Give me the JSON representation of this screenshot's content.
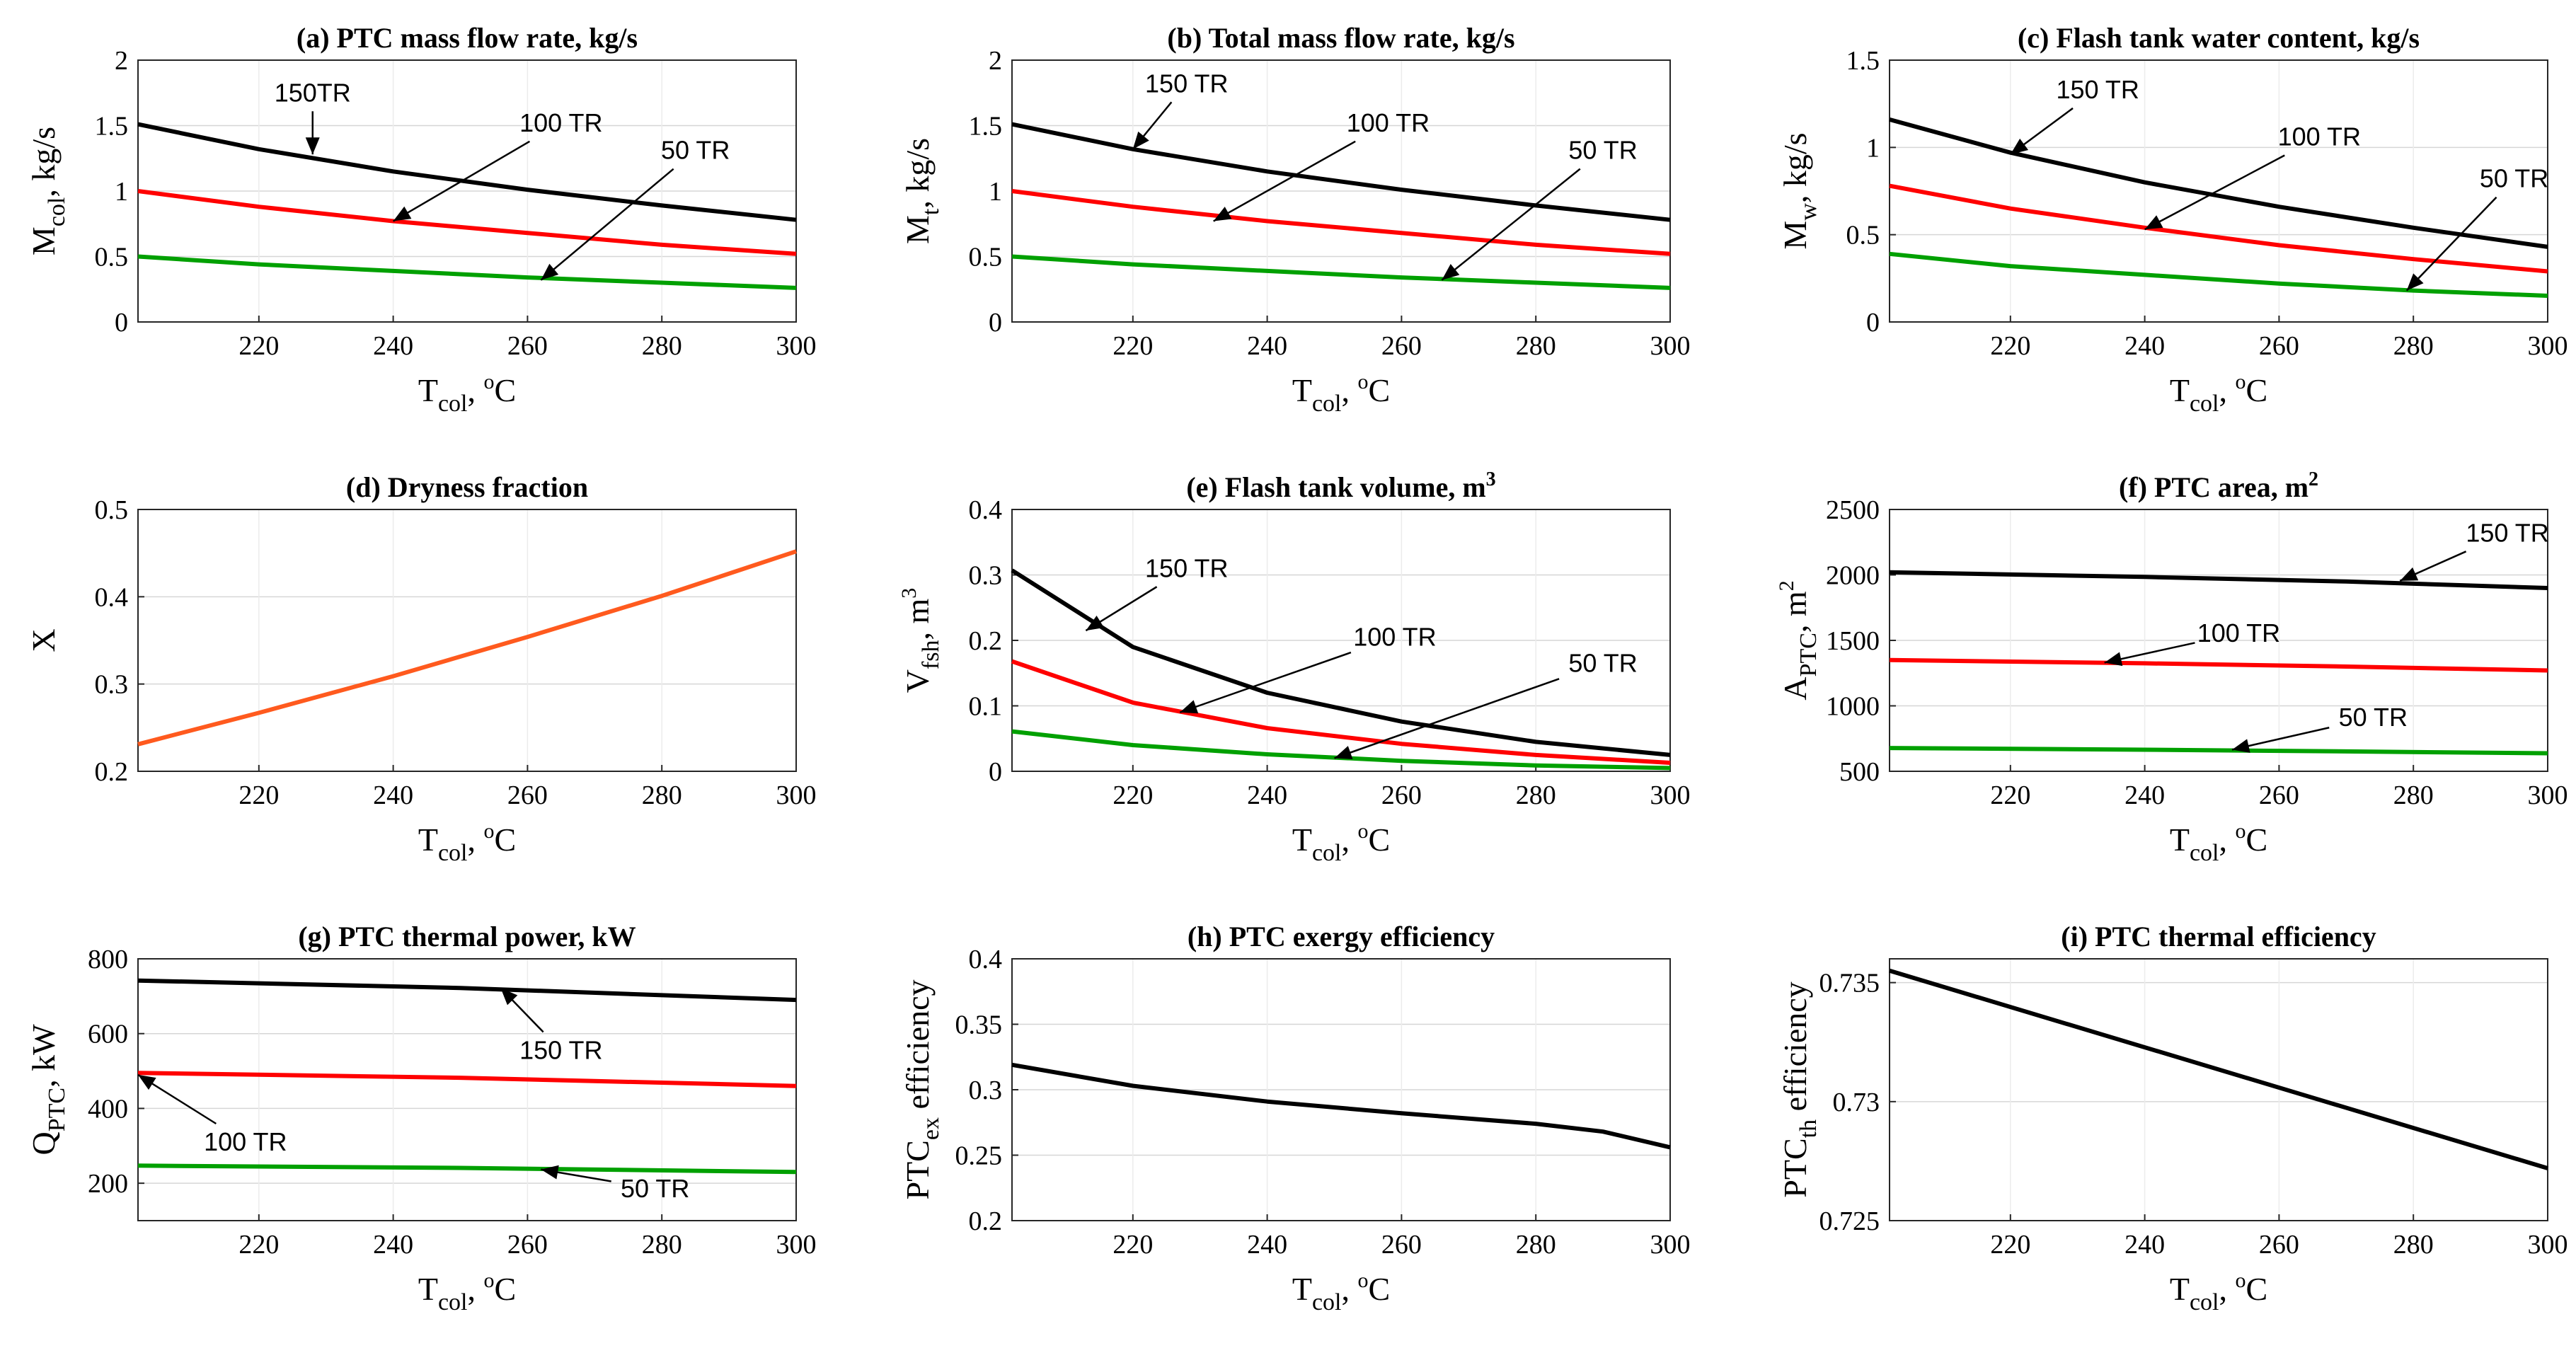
{
  "chart_data": [
    {
      "id": "a",
      "type": "line",
      "title": "(a) PTC mass flow rate, kg/s",
      "ylabel": "M_col, kg/s",
      "ylabel_parts": [
        "M",
        "col",
        ", kg/s"
      ],
      "xlabel_parts": [
        "T",
        "col",
        ", ",
        "o",
        "C"
      ],
      "xlim": [
        202,
        300
      ],
      "ylim": [
        0,
        2
      ],
      "xticks": [
        220,
        240,
        260,
        280,
        300
      ],
      "xtick_labels": [
        "220",
        "240",
        "260",
        "280",
        "300"
      ],
      "yticks": [
        0,
        0.5,
        1,
        1.5,
        2
      ],
      "ytick_labels": [
        "0",
        "0.5",
        "1",
        "1.5",
        "2"
      ],
      "series": [
        {
          "name": "150TR",
          "color": "#000000",
          "x": [
            202,
            220,
            240,
            260,
            280,
            300
          ],
          "y": [
            1.51,
            1.32,
            1.15,
            1.01,
            0.89,
            0.78
          ]
        },
        {
          "name": "100 TR",
          "color": "#ff0000",
          "x": [
            202,
            220,
            240,
            260,
            280,
            300
          ],
          "y": [
            1.0,
            0.88,
            0.77,
            0.68,
            0.59,
            0.52
          ]
        },
        {
          "name": "50 TR",
          "color": "#00a000",
          "x": [
            202,
            220,
            240,
            260,
            280,
            300
          ],
          "y": [
            0.5,
            0.44,
            0.39,
            0.34,
            0.3,
            0.26
          ]
        }
      ],
      "annotations": [
        {
          "text": "150TR",
          "tx": 228,
          "ty": 1.75,
          "ax": 228,
          "ay": 1.28
        },
        {
          "text": "100 TR",
          "tx": 265,
          "ty": 1.52,
          "ax": 240,
          "ay": 0.77
        },
        {
          "text": "50 TR",
          "tx": 285,
          "ty": 1.31,
          "ax": 262,
          "ay": 0.32
        }
      ]
    },
    {
      "id": "b",
      "type": "line",
      "title": "(b) Total mass flow rate, kg/s",
      "ylabel": "M_t, kg/s",
      "ylabel_parts": [
        "M",
        "t",
        ", kg/s"
      ],
      "xlabel_parts": [
        "T",
        "col",
        ", ",
        "o",
        "C"
      ],
      "xlim": [
        202,
        300
      ],
      "ylim": [
        0,
        2
      ],
      "xticks": [
        220,
        240,
        260,
        280,
        300
      ],
      "xtick_labels": [
        "220",
        "240",
        "260",
        "280",
        "300"
      ],
      "yticks": [
        0,
        0.5,
        1,
        1.5,
        2
      ],
      "ytick_labels": [
        "0",
        "0.5",
        "1",
        "1.5",
        "2"
      ],
      "series": [
        {
          "name": "150 TR",
          "color": "#000000",
          "x": [
            202,
            220,
            240,
            260,
            280,
            300
          ],
          "y": [
            1.51,
            1.32,
            1.15,
            1.01,
            0.89,
            0.78
          ]
        },
        {
          "name": "100 TR",
          "color": "#ff0000",
          "x": [
            202,
            220,
            240,
            260,
            280,
            300
          ],
          "y": [
            1.0,
            0.88,
            0.77,
            0.68,
            0.59,
            0.52
          ]
        },
        {
          "name": "50 TR",
          "color": "#00a000",
          "x": [
            202,
            220,
            240,
            260,
            280,
            300
          ],
          "y": [
            0.5,
            0.44,
            0.39,
            0.34,
            0.3,
            0.26
          ]
        }
      ],
      "annotations": [
        {
          "text": "150 TR",
          "tx": 228,
          "ty": 1.82,
          "ax": 220,
          "ay": 1.32
        },
        {
          "text": "100 TR",
          "tx": 258,
          "ty": 1.52,
          "ax": 232,
          "ay": 0.77
        },
        {
          "text": "50 TR",
          "tx": 290,
          "ty": 1.31,
          "ax": 266,
          "ay": 0.32
        }
      ]
    },
    {
      "id": "c",
      "type": "line",
      "title": "(c) Flash tank water content, kg/s",
      "ylabel": "M_w, kg/s",
      "ylabel_parts": [
        "M",
        "w",
        ", kg/s"
      ],
      "xlabel_parts": [
        "T",
        "col",
        ", ",
        "o",
        "C"
      ],
      "xlim": [
        202,
        300
      ],
      "ylim": [
        0,
        1.5
      ],
      "xticks": [
        220,
        240,
        260,
        280,
        300
      ],
      "xtick_labels": [
        "220",
        "240",
        "260",
        "280",
        "300"
      ],
      "yticks": [
        0,
        0.5,
        1,
        1.5
      ],
      "ytick_labels": [
        "0",
        "0.5",
        "1",
        "1.5"
      ],
      "series": [
        {
          "name": "150 TR",
          "color": "#000000",
          "x": [
            202,
            220,
            240,
            260,
            280,
            300
          ],
          "y": [
            1.16,
            0.97,
            0.8,
            0.66,
            0.54,
            0.43
          ]
        },
        {
          "name": "100 TR",
          "color": "#ff0000",
          "x": [
            202,
            220,
            240,
            260,
            280,
            300
          ],
          "y": [
            0.78,
            0.65,
            0.54,
            0.44,
            0.36,
            0.29
          ]
        },
        {
          "name": "50 TR",
          "color": "#00a000",
          "x": [
            202,
            220,
            240,
            260,
            280,
            300
          ],
          "y": [
            0.39,
            0.32,
            0.27,
            0.22,
            0.18,
            0.15
          ]
        }
      ],
      "annotations": [
        {
          "text": "150 TR",
          "tx": 233,
          "ty": 1.33,
          "ax": 220,
          "ay": 0.96
        },
        {
          "text": "100 TR",
          "tx": 266,
          "ty": 1.06,
          "ax": 240,
          "ay": 0.53
        },
        {
          "text": "50 TR",
          "tx": 295,
          "ty": 0.82,
          "ax": 279,
          "ay": 0.18
        }
      ]
    },
    {
      "id": "d",
      "type": "line",
      "title": "(d) Dryness fraction",
      "ylabel": "X",
      "ylabel_parts": [
        "X",
        "",
        ""
      ],
      "xlabel_parts": [
        "T",
        "col",
        ", ",
        "o",
        "C"
      ],
      "xlim": [
        202,
        300
      ],
      "ylim": [
        0.2,
        0.5
      ],
      "xticks": [
        220,
        240,
        260,
        280,
        300
      ],
      "xtick_labels": [
        "220",
        "240",
        "260",
        "280",
        "300"
      ],
      "yticks": [
        0.2,
        0.3,
        0.4,
        0.5
      ],
      "ytick_labels": [
        "0.2",
        "0.3",
        "0.4",
        "0.5"
      ],
      "series": [
        {
          "name": "X",
          "color": "#ff5a1e",
          "x": [
            202,
            220,
            240,
            260,
            280,
            300
          ],
          "y": [
            0.231,
            0.267,
            0.309,
            0.354,
            0.401,
            0.452
          ]
        }
      ],
      "annotations": []
    },
    {
      "id": "e",
      "type": "line",
      "title": "(e) Flash tank volume, m",
      "title_sup": "3",
      "ylabel": "V_fsh, m^3",
      "ylabel_parts": [
        "V",
        "fsh",
        ", m",
        "3"
      ],
      "xlabel_parts": [
        "T",
        "col",
        ", ",
        "o",
        "C"
      ],
      "xlim": [
        202,
        300
      ],
      "ylim": [
        0,
        0.4
      ],
      "xticks": [
        220,
        240,
        260,
        280,
        300
      ],
      "xtick_labels": [
        "220",
        "240",
        "260",
        "280",
        "300"
      ],
      "yticks": [
        0,
        0.1,
        0.2,
        0.3,
        0.4
      ],
      "ytick_labels": [
        "0",
        "0.1",
        "0.2",
        "0.3",
        "0.4"
      ],
      "series": [
        {
          "name": "150 TR",
          "color": "#000000",
          "x": [
            202,
            220,
            240,
            260,
            280,
            300
          ],
          "y": [
            0.307,
            0.19,
            0.12,
            0.076,
            0.045,
            0.025
          ]
        },
        {
          "name": "100 TR",
          "color": "#ff0000",
          "x": [
            202,
            220,
            240,
            260,
            280,
            300
          ],
          "y": [
            0.168,
            0.105,
            0.066,
            0.042,
            0.025,
            0.013
          ]
        },
        {
          "name": "50 TR",
          "color": "#00a000",
          "x": [
            202,
            220,
            240,
            260,
            280,
            300
          ],
          "y": [
            0.061,
            0.04,
            0.026,
            0.016,
            0.009,
            0.005
          ]
        }
      ],
      "annotations": [
        {
          "text": "150 TR",
          "tx": 228,
          "ty": 0.31,
          "ax": 213,
          "ay": 0.215
        },
        {
          "text": "100 TR",
          "tx": 259,
          "ty": 0.205,
          "ax": 227,
          "ay": 0.09
        },
        {
          "text": "50 TR",
          "tx": 290,
          "ty": 0.165,
          "ax": 250,
          "ay": 0.02
        }
      ]
    },
    {
      "id": "f",
      "type": "line",
      "title": "(f) PTC area, m",
      "title_sup": "2",
      "ylabel": "A_PTC, m^2",
      "ylabel_parts": [
        "A",
        "PTC",
        ", m",
        "2"
      ],
      "xlabel_parts": [
        "T",
        "col",
        ", ",
        "o",
        "C"
      ],
      "xlim": [
        202,
        300
      ],
      "ylim": [
        500,
        2500
      ],
      "xticks": [
        220,
        240,
        260,
        280,
        300
      ],
      "xtick_labels": [
        "220",
        "240",
        "260",
        "280",
        "300"
      ],
      "yticks": [
        500,
        1000,
        1500,
        2000,
        2500
      ],
      "ytick_labels": [
        "500",
        "1000",
        "1500",
        "2000",
        "2500"
      ],
      "series": [
        {
          "name": "150 TR",
          "color": "#000000",
          "x": [
            202,
            240,
            270,
            300
          ],
          "y": [
            2020,
            1985,
            1950,
            1900
          ]
        },
        {
          "name": "100 TR",
          "color": "#ff0000",
          "x": [
            202,
            240,
            270,
            300
          ],
          "y": [
            1350,
            1325,
            1300,
            1270
          ]
        },
        {
          "name": "50 TR",
          "color": "#00a000",
          "x": [
            202,
            240,
            270,
            300
          ],
          "y": [
            678,
            665,
            652,
            638
          ]
        }
      ],
      "annotations": [
        {
          "text": "150 TR",
          "tx": 294,
          "ty": 2320,
          "ax": 278,
          "ay": 1955
        },
        {
          "text": "100 TR",
          "tx": 254,
          "ty": 1555,
          "ax": 234,
          "ay": 1330
        },
        {
          "text": "50 TR",
          "tx": 274,
          "ty": 910,
          "ax": 253,
          "ay": 665
        }
      ]
    },
    {
      "id": "g",
      "type": "line",
      "title": "(g) PTC thermal power, kW",
      "ylabel": "Q_PTC, kW",
      "ylabel_parts": [
        "Q",
        "PTC",
        ", kW"
      ],
      "xlabel_parts": [
        "T",
        "col",
        ", ",
        "o",
        "C"
      ],
      "xlim": [
        202,
        300
      ],
      "ylim": [
        100,
        800
      ],
      "xticks": [
        220,
        240,
        260,
        280,
        300
      ],
      "xtick_labels": [
        "220",
        "240",
        "260",
        "280",
        "300"
      ],
      "yticks": [
        200,
        400,
        600,
        800
      ],
      "ytick_labels": [
        "200",
        "400",
        "600",
        "800"
      ],
      "series": [
        {
          "name": "150 TR",
          "color": "#000000",
          "x": [
            202,
            250,
            300
          ],
          "y": [
            742,
            722,
            690
          ]
        },
        {
          "name": "100 TR",
          "color": "#ff0000",
          "x": [
            202,
            250,
            300
          ],
          "y": [
            495,
            482,
            460
          ]
        },
        {
          "name": "50 TR",
          "color": "#00a000",
          "x": [
            202,
            250,
            300
          ],
          "y": [
            247,
            241,
            230
          ]
        }
      ],
      "annotations": [
        {
          "text": "150 TR",
          "tx": 265,
          "ty": 555,
          "ax": 256,
          "ay": 722
        },
        {
          "text": "100 TR",
          "tx": 218,
          "ty": 310,
          "ax": 202,
          "ay": 490
        },
        {
          "text": "50 TR",
          "tx": 279,
          "ty": 185,
          "ax": 262,
          "ay": 237
        }
      ]
    },
    {
      "id": "h",
      "type": "line",
      "title": "(h) PTC exergy efficiency",
      "ylabel": "PTC_ex efficiency",
      "ylabel_parts": [
        "PTC",
        "ex",
        " efficiency"
      ],
      "xlabel_parts": [
        "T",
        "col",
        ", ",
        "o",
        "C"
      ],
      "xlim": [
        202,
        300
      ],
      "ylim": [
        0.2,
        0.4
      ],
      "xticks": [
        220,
        240,
        260,
        280,
        300
      ],
      "xtick_labels": [
        "220",
        "240",
        "260",
        "280",
        "300"
      ],
      "yticks": [
        0.2,
        0.25,
        0.3,
        0.35,
        0.4
      ],
      "ytick_labels": [
        "0.2",
        "0.25",
        "0.3",
        "0.35",
        "0.4"
      ],
      "series": [
        {
          "name": "PTC exergy efficiency",
          "color": "#000000",
          "x": [
            202,
            220,
            240,
            260,
            280,
            290,
            300
          ],
          "y": [
            0.319,
            0.303,
            0.291,
            0.282,
            0.274,
            0.268,
            0.256
          ]
        }
      ],
      "annotations": []
    },
    {
      "id": "i",
      "type": "line",
      "title": "(i) PTC thermal efficiency",
      "ylabel": "PTC_th efficiency",
      "ylabel_parts": [
        "PTC",
        "th",
        " efficiency"
      ],
      "xlabel_parts": [
        "T",
        "col",
        ", ",
        "o",
        "C"
      ],
      "xlim": [
        202,
        300
      ],
      "ylim": [
        0.725,
        0.736
      ],
      "xticks": [
        220,
        240,
        260,
        280,
        300
      ],
      "xtick_labels": [
        "220",
        "240",
        "260",
        "280",
        "300"
      ],
      "yticks": [
        0.725,
        0.73,
        0.735
      ],
      "ytick_labels": [
        "0.725",
        "0.73",
        "0.735"
      ],
      "series": [
        {
          "name": "PTC thermal efficiency",
          "color": "#000000",
          "x": [
            202,
            300
          ],
          "y": [
            0.7355,
            0.7272
          ]
        }
      ],
      "annotations": []
    }
  ]
}
